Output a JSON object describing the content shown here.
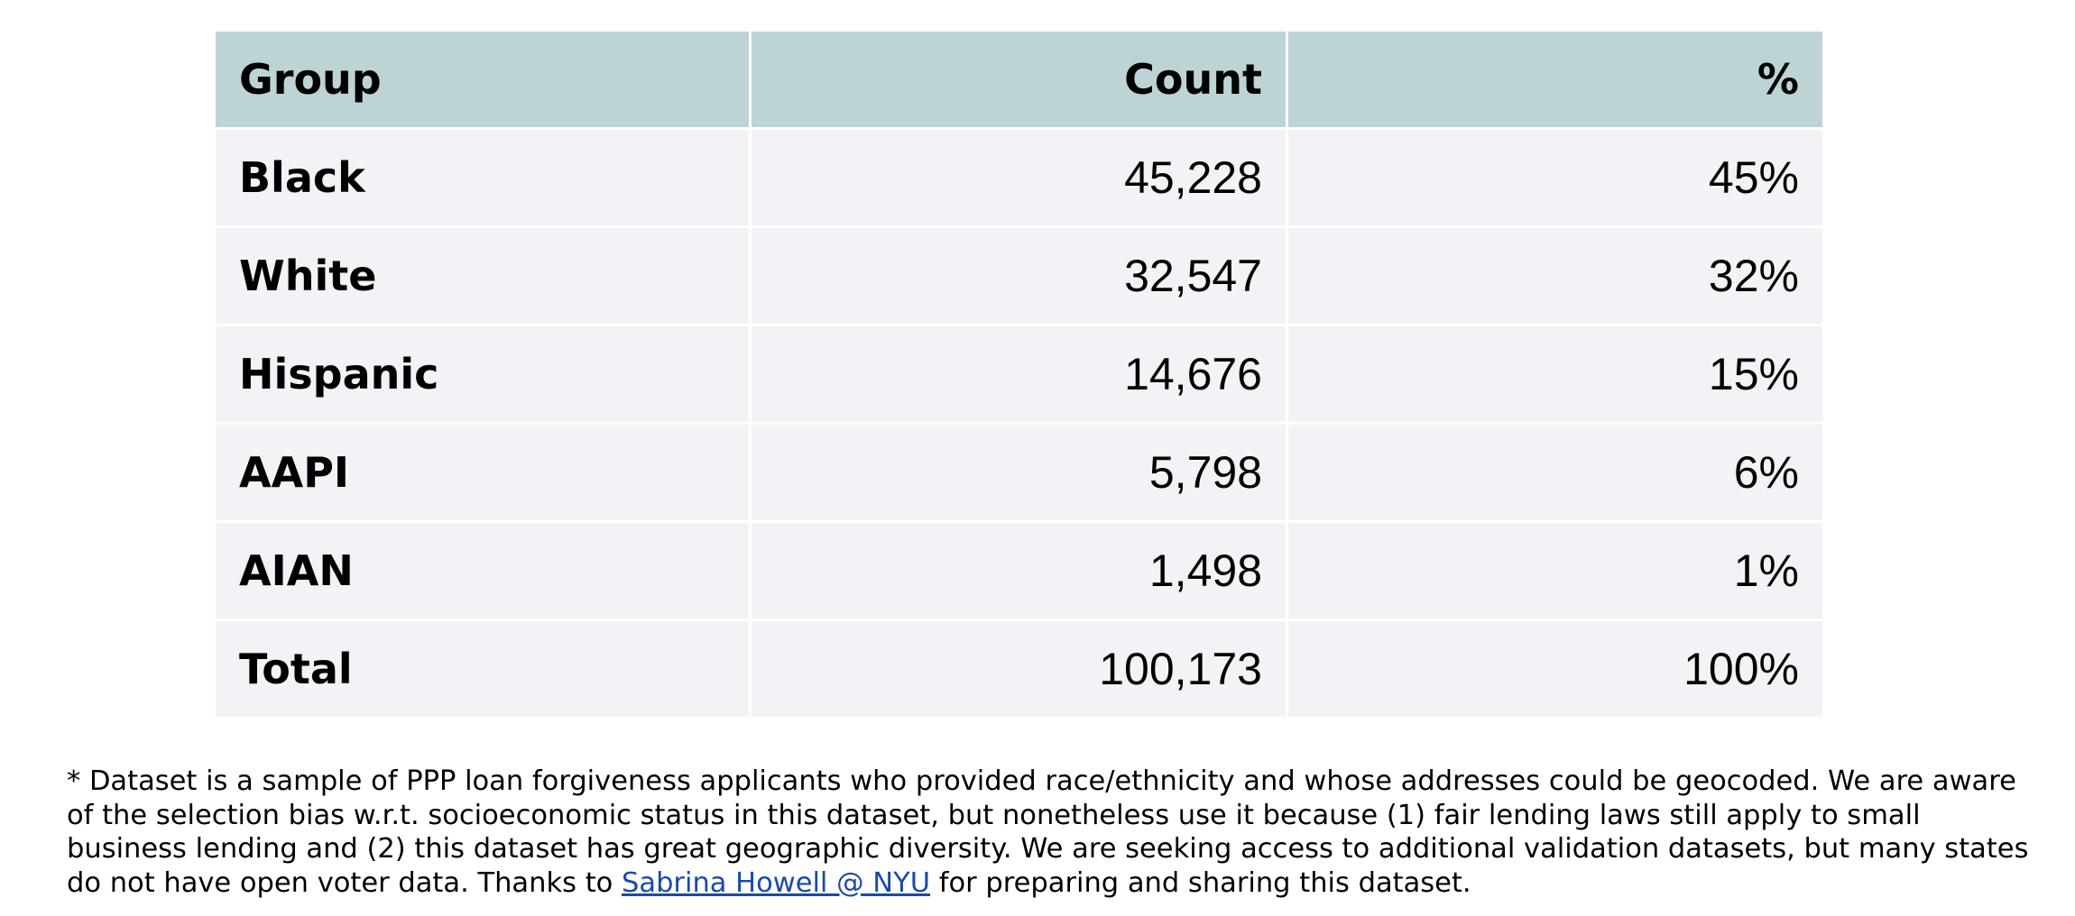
{
  "table": {
    "headers": [
      "Group",
      "Count",
      "%"
    ],
    "rows": [
      {
        "group": "Black",
        "count": "45,228",
        "percent": "45%"
      },
      {
        "group": "White",
        "count": "32,547",
        "percent": "32%"
      },
      {
        "group": "Hispanic",
        "count": "14,676",
        "percent": "15%"
      },
      {
        "group": "AAPI",
        "count": "5,798",
        "percent": "6%"
      },
      {
        "group": "AIAN",
        "count": "1,498",
        "percent": "1%"
      },
      {
        "group": "Total",
        "count": "100,173",
        "percent": "100%"
      }
    ]
  },
  "footnote": {
    "text_before_link": "* Dataset is a sample of PPP loan forgiveness applicants who provided race/ethnicity and whose addresses could be geocoded.  We are aware of the selection bias w.r.t. socioeconomic status in this dataset, but nonetheless use it because (1) fair lending laws still apply to small business lending and (2) this dataset has great geographic diversity.  We are seeking access to additional validation datasets, but many states do not have open voter data.  Thanks to ",
    "link_text": "Sabrina Howell @ NYU",
    "text_after_link": " for preparing and sharing this dataset."
  },
  "colors": {
    "header_background": "#bdd3d6",
    "row_background": "#f2f3f6",
    "link": "#1a4aa8"
  }
}
